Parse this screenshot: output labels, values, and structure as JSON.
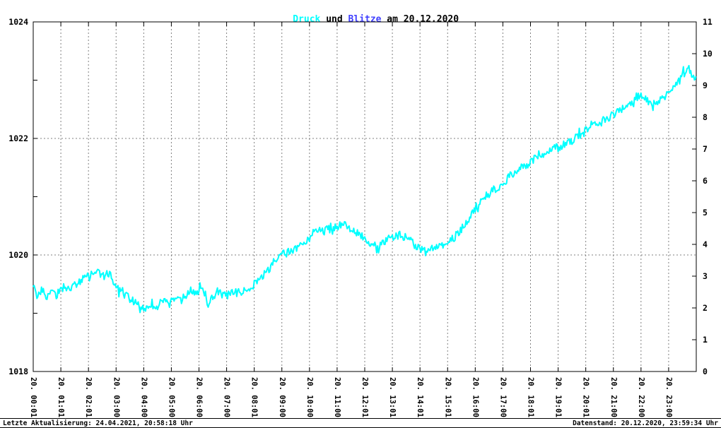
{
  "title": {
    "druck": "Druck",
    "und": " und ",
    "blitze": "Blitze",
    "date": " am 20.12.2020"
  },
  "footer": {
    "left": "Letzte Aktualisierung: 24.04.2021, 20:58:18 Uhr",
    "right": "Datenstand: 20.12.2020, 23:59:34 Uhr"
  },
  "colors": {
    "druck": "#00ffff",
    "blitze": "#4040ff",
    "grid": "#808080",
    "axis": "#000000",
    "background": "#ffffff"
  },
  "chart_data": {
    "type": "line",
    "title": "Druck und Blitze am 20.12.2020",
    "legend_position": "title",
    "grid": {
      "vertical_hours": [
        1,
        2,
        3,
        4,
        5,
        6,
        7,
        8,
        9,
        10,
        11,
        12,
        13,
        14,
        15,
        16,
        17,
        18,
        19,
        20,
        21,
        22,
        23
      ],
      "horizontal_values": [
        1020,
        1022
      ]
    },
    "y_left": {
      "min": 1018,
      "max": 1024,
      "ticks": [
        1018,
        1020,
        1022,
        1024
      ]
    },
    "y_right": {
      "min": 0,
      "max": 11,
      "ticks": [
        0,
        1,
        2,
        3,
        4,
        5,
        6,
        7,
        8,
        9,
        10,
        11
      ]
    },
    "x_ticks": [
      {
        "h": 0,
        "label": "20. 00:01"
      },
      {
        "h": 1,
        "label": "20. 01:01"
      },
      {
        "h": 2,
        "label": "20. 02:01"
      },
      {
        "h": 3,
        "label": "20. 03:00"
      },
      {
        "h": 4,
        "label": "20. 04:00"
      },
      {
        "h": 5,
        "label": "20. 05:00"
      },
      {
        "h": 6,
        "label": "20. 06:00"
      },
      {
        "h": 7,
        "label": "20. 07:00"
      },
      {
        "h": 8,
        "label": "20. 08:01"
      },
      {
        "h": 9,
        "label": "20. 09:00"
      },
      {
        "h": 10,
        "label": "20. 10:00"
      },
      {
        "h": 11,
        "label": "20. 11:00"
      },
      {
        "h": 12,
        "label": "20. 12:01"
      },
      {
        "h": 13,
        "label": "20. 13:01"
      },
      {
        "h": 14,
        "label": "20. 14:01"
      },
      {
        "h": 15,
        "label": "20. 15:01"
      },
      {
        "h": 16,
        "label": "20. 16:00"
      },
      {
        "h": 17,
        "label": "20. 17:00"
      },
      {
        "h": 18,
        "label": "20. 18:01"
      },
      {
        "h": 19,
        "label": "20. 19:01"
      },
      {
        "h": 20,
        "label": "20. 20:01"
      },
      {
        "h": 21,
        "label": "20. 21:00"
      },
      {
        "h": 22,
        "label": "20. 22:00"
      },
      {
        "h": 23,
        "label": "20. 23:00"
      }
    ],
    "noise_amplitude": 0.07,
    "series": [
      {
        "name": "Druck",
        "axis": "left",
        "color": "#00ffff",
        "points": [
          [
            0.0,
            1019.45
          ],
          [
            0.15,
            1019.3
          ],
          [
            0.3,
            1019.4
          ],
          [
            0.45,
            1019.25
          ],
          [
            0.6,
            1019.4
          ],
          [
            0.8,
            1019.3
          ],
          [
            1.0,
            1019.4
          ],
          [
            1.2,
            1019.5
          ],
          [
            1.35,
            1019.4
          ],
          [
            1.5,
            1019.5
          ],
          [
            1.7,
            1019.55
          ],
          [
            1.9,
            1019.65
          ],
          [
            2.1,
            1019.6
          ],
          [
            2.3,
            1019.75
          ],
          [
            2.5,
            1019.65
          ],
          [
            2.7,
            1019.7
          ],
          [
            2.85,
            1019.55
          ],
          [
            3.0,
            1019.45
          ],
          [
            3.2,
            1019.35
          ],
          [
            3.4,
            1019.3
          ],
          [
            3.6,
            1019.25
          ],
          [
            3.8,
            1019.15
          ],
          [
            4.0,
            1019.1
          ],
          [
            4.2,
            1019.05
          ],
          [
            4.35,
            1019.15
          ],
          [
            4.5,
            1019.1
          ],
          [
            4.7,
            1019.2
          ],
          [
            4.9,
            1019.15
          ],
          [
            5.1,
            1019.25
          ],
          [
            5.3,
            1019.2
          ],
          [
            5.5,
            1019.3
          ],
          [
            5.7,
            1019.4
          ],
          [
            5.9,
            1019.3
          ],
          [
            6.05,
            1019.5
          ],
          [
            6.2,
            1019.35
          ],
          [
            6.35,
            1019.1
          ],
          [
            6.5,
            1019.3
          ],
          [
            6.75,
            1019.35
          ],
          [
            7.0,
            1019.3
          ],
          [
            7.25,
            1019.35
          ],
          [
            7.5,
            1019.35
          ],
          [
            7.75,
            1019.4
          ],
          [
            8.0,
            1019.5
          ],
          [
            8.25,
            1019.6
          ],
          [
            8.5,
            1019.75
          ],
          [
            8.75,
            1019.85
          ],
          [
            9.0,
            1020.0
          ],
          [
            9.25,
            1020.05
          ],
          [
            9.5,
            1020.1
          ],
          [
            9.75,
            1020.2
          ],
          [
            10.0,
            1020.3
          ],
          [
            10.25,
            1020.45
          ],
          [
            10.5,
            1020.4
          ],
          [
            10.75,
            1020.5
          ],
          [
            11.0,
            1020.45
          ],
          [
            11.2,
            1020.55
          ],
          [
            11.4,
            1020.45
          ],
          [
            11.6,
            1020.4
          ],
          [
            11.8,
            1020.35
          ],
          [
            12.0,
            1020.3
          ],
          [
            12.25,
            1020.2
          ],
          [
            12.5,
            1020.15
          ],
          [
            12.75,
            1020.25
          ],
          [
            13.0,
            1020.3
          ],
          [
            13.25,
            1020.35
          ],
          [
            13.5,
            1020.3
          ],
          [
            13.75,
            1020.2
          ],
          [
            14.0,
            1020.1
          ],
          [
            14.2,
            1020.05
          ],
          [
            14.5,
            1020.15
          ],
          [
            14.75,
            1020.2
          ],
          [
            15.0,
            1020.25
          ],
          [
            15.25,
            1020.3
          ],
          [
            15.5,
            1020.45
          ],
          [
            15.75,
            1020.6
          ],
          [
            16.0,
            1020.8
          ],
          [
            16.25,
            1020.95
          ],
          [
            16.5,
            1021.05
          ],
          [
            16.75,
            1021.15
          ],
          [
            17.0,
            1021.2
          ],
          [
            17.25,
            1021.35
          ],
          [
            17.5,
            1021.45
          ],
          [
            17.75,
            1021.5
          ],
          [
            18.0,
            1021.6
          ],
          [
            18.25,
            1021.7
          ],
          [
            18.5,
            1021.75
          ],
          [
            18.75,
            1021.8
          ],
          [
            19.0,
            1021.85
          ],
          [
            19.25,
            1021.9
          ],
          [
            19.5,
            1021.95
          ],
          [
            19.75,
            1022.05
          ],
          [
            20.0,
            1022.15
          ],
          [
            20.25,
            1022.25
          ],
          [
            20.5,
            1022.3
          ],
          [
            20.75,
            1022.35
          ],
          [
            21.0,
            1022.4
          ],
          [
            21.25,
            1022.5
          ],
          [
            21.5,
            1022.55
          ],
          [
            21.75,
            1022.65
          ],
          [
            22.0,
            1022.75
          ],
          [
            22.2,
            1022.65
          ],
          [
            22.4,
            1022.55
          ],
          [
            22.6,
            1022.65
          ],
          [
            22.8,
            1022.7
          ],
          [
            23.0,
            1022.8
          ],
          [
            23.2,
            1022.9
          ],
          [
            23.4,
            1023.0
          ],
          [
            23.6,
            1023.15
          ],
          [
            23.75,
            1023.2
          ],
          [
            23.85,
            1023.05
          ],
          [
            23.98,
            1023.05
          ]
        ]
      },
      {
        "name": "Blitze",
        "axis": "right",
        "color": "#4040ff",
        "points": []
      }
    ]
  }
}
